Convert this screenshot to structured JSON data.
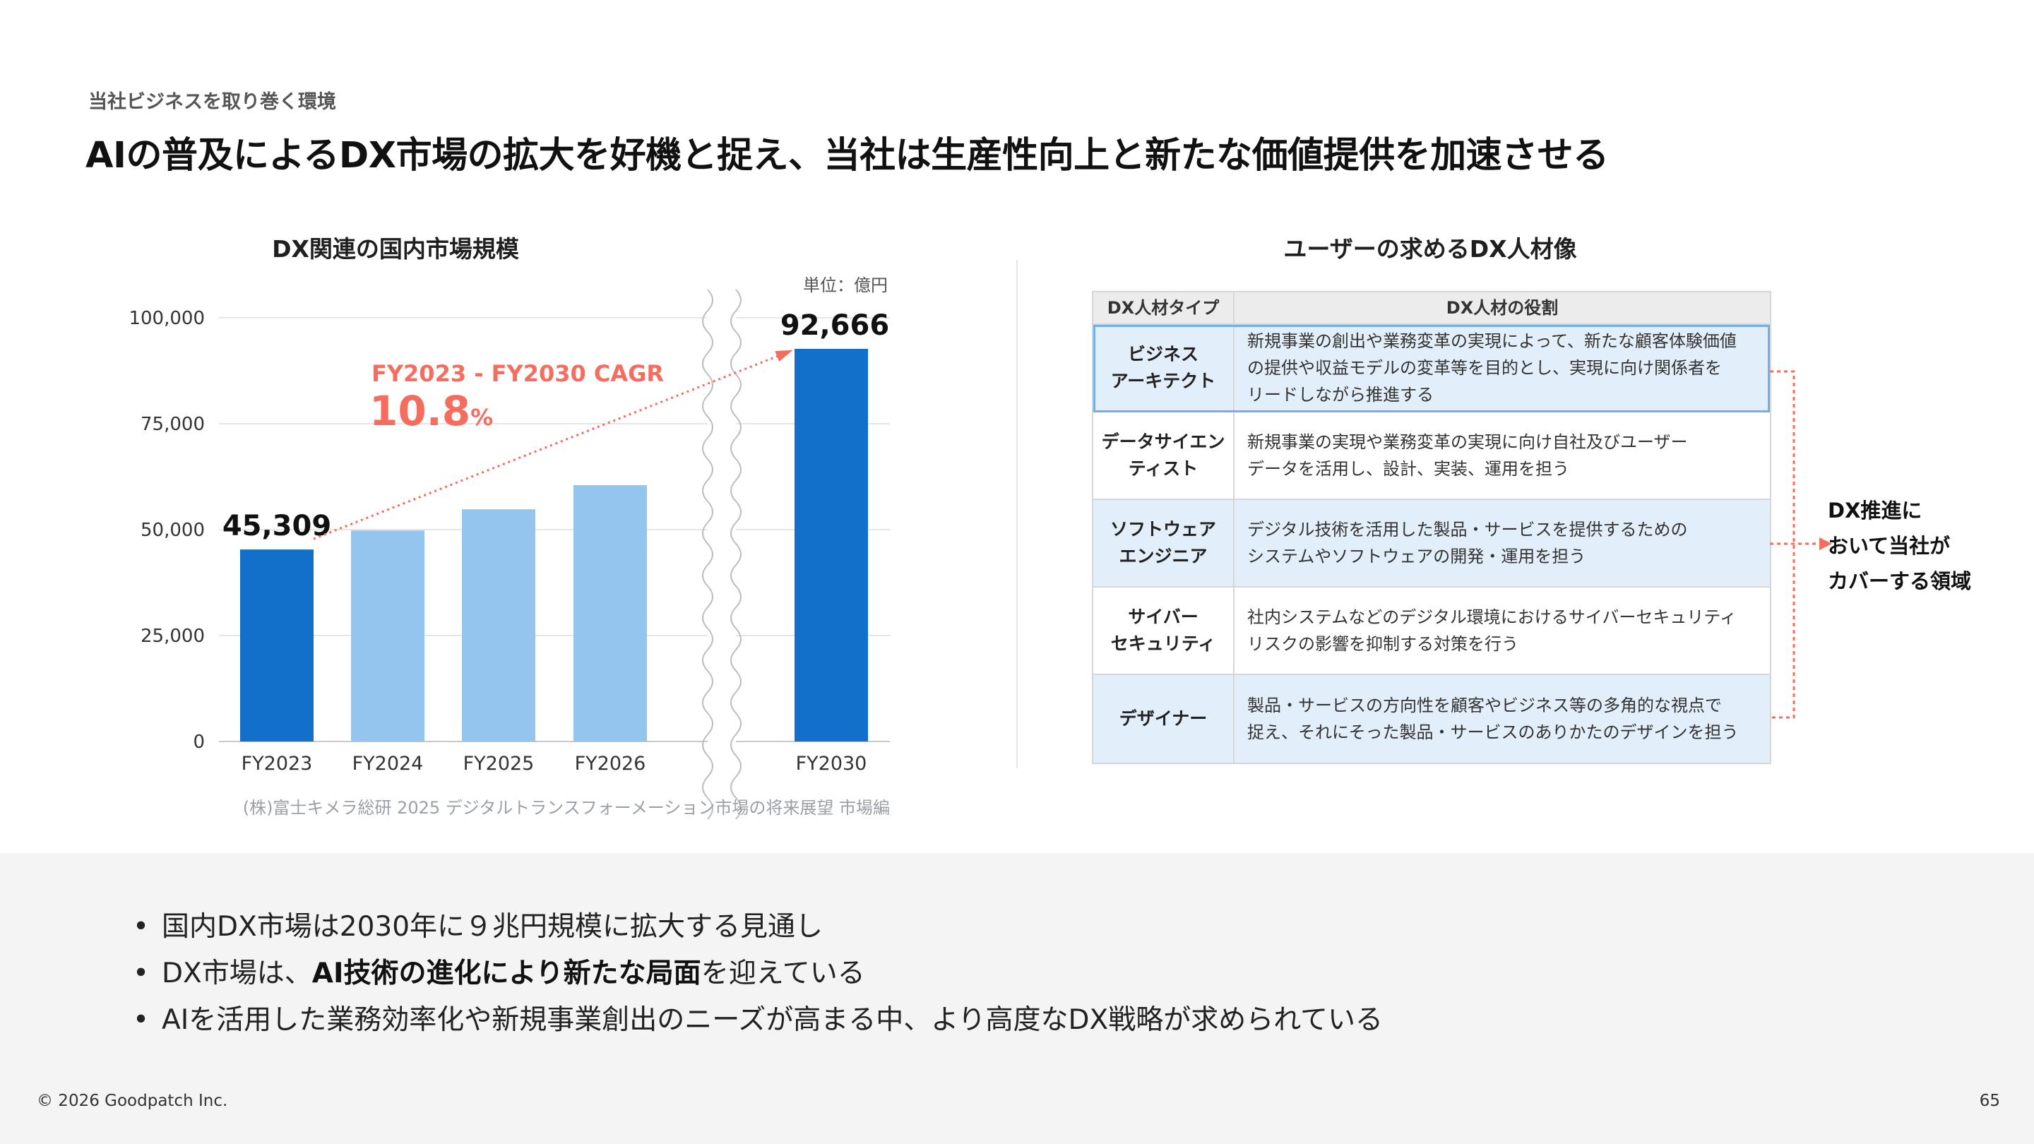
{
  "header": {
    "kicker": "当社ビジネスを取り巻く環境",
    "headline": "AIの普及によるDX市場の拡大を好機と捉え、当社は生産性向上と新たな価値提供を加速させる"
  },
  "chart_data": {
    "type": "bar",
    "title": "DX関連の国内市場規模",
    "unit": "単位：億円",
    "categories": [
      "FY2023",
      "FY2024",
      "FY2025",
      "FY2026",
      "FY2030"
    ],
    "values": [
      45309,
      49800,
      54800,
      60500,
      92666
    ],
    "data_labels": [
      "45,309",
      "",
      "",
      "",
      "92,666"
    ],
    "highlight": [
      true,
      false,
      false,
      false,
      true
    ],
    "y_ticks": [
      "0",
      "25,000",
      "50,000",
      "75,000",
      "100,000"
    ],
    "ylim": [
      0,
      100000
    ],
    "axis_break_after": "FY2026",
    "grid": true,
    "annotation": {
      "label": "FY2023 - FY2030 CAGR",
      "value": "10.8",
      "suffix": "%"
    },
    "colors": {
      "highlight": "#1270ca",
      "normal": "#93c5ee",
      "accent": "#f46d5e",
      "grid": "#e6e6e6",
      "axis": "#c9c9c9"
    },
    "source": "(株)富士キメラ総研 2025 デジタルトランスフォーメーション市場の将来展望 市場編"
  },
  "table": {
    "title": "ユーザーの求めるDX人材像",
    "headers": {
      "type": "DX人材タイプ",
      "role": "DX人材の役割"
    },
    "rows": [
      {
        "type": "ビジネス\nアーキテクト",
        "role": "新規事業の創出や業務変革の実現によって、新たな顧客体験価値\nの提供や収益モデルの変革等を目的とし、実現に向け関係者を\nリードしながら推進する",
        "blue": true,
        "highlight": true
      },
      {
        "type": "データサイエン\nティスト",
        "role": "新規事業の実現や業務変革の実現に向け自社及びユーザー\nデータを活用し、設計、実装、運用を担う",
        "blue": false,
        "highlight": false
      },
      {
        "type": "ソフトウェア\nエンジニア",
        "role": "デジタル技術を活用した製品・サービスを提供するための\nシステムやソフトウェアの開発・運用を担う",
        "blue": true,
        "highlight": false
      },
      {
        "type": "サイバー\nセキュリティ",
        "role": "社内システムなどのデジタル環境におけるサイバーセキュリティ\nリスクの影響を抑制する対策を行う",
        "blue": false,
        "highlight": false
      },
      {
        "type": "デザイナー",
        "role": "製品・サービスの方向性を顧客やビジネス等の多角的な視点で\n捉え、それにそった製品・サービスのありかたのデザインを担う",
        "blue": true,
        "highlight": false
      }
    ],
    "coverage_label": "DX推進に\nおいて当社が\nカバーする領域",
    "accent_color": "#f46d5e"
  },
  "bullets": [
    {
      "parts": [
        {
          "text": "国内DX市場は2030年に９兆円規模に拡大する見通し",
          "bold": false
        }
      ]
    },
    {
      "parts": [
        {
          "text": "DX市場は、",
          "bold": false
        },
        {
          "text": "AI技術の進化により新たな局面",
          "bold": true
        },
        {
          "text": "を迎えている",
          "bold": false
        }
      ]
    },
    {
      "parts": [
        {
          "text": "AIを活用した業務効率化や新規事業創出のニーズが高まる中、より高度なDX戦略が求められている",
          "bold": false
        }
      ]
    }
  ],
  "footer": {
    "copyright": "© 2026 Goodpatch Inc.",
    "page": "65"
  }
}
